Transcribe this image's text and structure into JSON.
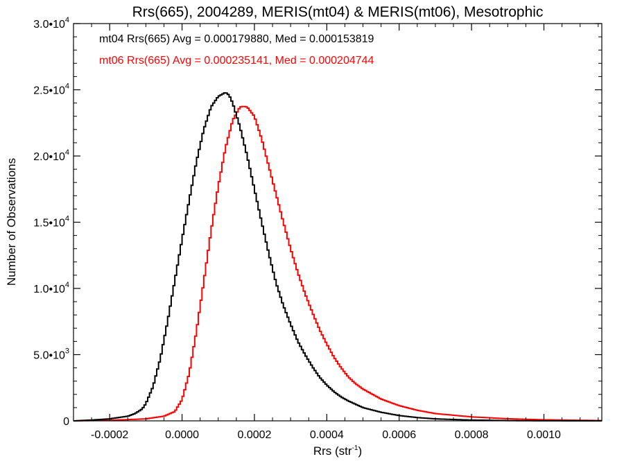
{
  "chart_data": {
    "type": "line",
    "title": "Rrs(665), 2004289, MERIS(mt04) & MERIS(mt06), Mesotrophic",
    "xlabel": "Rrs (str",
    "xlabel_sup": "-1",
    "xlabel_close": ")",
    "ylabel": "Number of Observations",
    "xlim": [
      -0.0003,
      0.00116
    ],
    "ylim": [
      0,
      30000
    ],
    "x_ticks": [
      {
        "value": -0.0002,
        "label": "-0.0002"
      },
      {
        "value": 0.0,
        "label": "0.0000"
      },
      {
        "value": 0.0002,
        "label": "0.0002"
      },
      {
        "value": 0.0004,
        "label": "0.0004"
      },
      {
        "value": 0.0006,
        "label": "0.0006"
      },
      {
        "value": 0.0008,
        "label": "0.0008"
      },
      {
        "value": 0.001,
        "label": "0.0010"
      }
    ],
    "y_ticks": [
      {
        "value": 0,
        "mant": "0",
        "exp": ""
      },
      {
        "value": 5000,
        "mant": "5.0•10",
        "exp": "3"
      },
      {
        "value": 10000,
        "mant": "1.0•10",
        "exp": "4"
      },
      {
        "value": 15000,
        "mant": "1.5•10",
        "exp": "4"
      },
      {
        "value": 20000,
        "mant": "2.0•10",
        "exp": "4"
      },
      {
        "value": 25000,
        "mant": "2.5•10",
        "exp": "4"
      },
      {
        "value": 30000,
        "mant": "3.0•10",
        "exp": "4"
      }
    ],
    "grid": false,
    "legend_position": "top-left",
    "step": true,
    "series": [
      {
        "name": "mt04 Rrs(665) Avg = 0.000179880, Med = 0.000153819",
        "color": "#000000",
        "x": [
          -0.0003,
          -0.00025,
          -0.0002,
          -0.00015,
          -0.00013,
          -0.00011,
          -0.0001,
          -8e-05,
          -6e-05,
          -4e-05,
          -2e-05,
          0.0,
          2e-05,
          4e-05,
          6e-05,
          8e-05,
          0.0001,
          0.00012,
          0.00013,
          0.00014,
          0.00016,
          0.00018,
          0.0002,
          0.00022,
          0.00024,
          0.00026,
          0.00028,
          0.0003,
          0.00032,
          0.00034,
          0.00036,
          0.00038,
          0.0004,
          0.00042,
          0.00044,
          0.00046,
          0.0005,
          0.00055,
          0.0006,
          0.00065,
          0.0007,
          0.0008,
          0.0009,
          0.001,
          0.00116
        ],
        "y": [
          0,
          60,
          150,
          350,
          550,
          900,
          1300,
          2600,
          4700,
          7500,
          10600,
          13700,
          16700,
          19600,
          22000,
          23700,
          24500,
          24800,
          24600,
          24000,
          22200,
          20000,
          17500,
          15000,
          12600,
          10400,
          8700,
          7300,
          6000,
          5000,
          4100,
          3300,
          2700,
          2200,
          1800,
          1500,
          1000,
          650,
          400,
          250,
          150,
          60,
          20,
          5,
          0
        ]
      },
      {
        "name": "mt06 Rrs(665) Avg = 0.000235141, Med = 0.000204744",
        "color": "#ff0000",
        "x": [
          -0.0003,
          -0.0002,
          -0.0001,
          -5e-05,
          -2e-05,
          0.0,
          2e-05,
          4e-05,
          6e-05,
          8e-05,
          0.0001,
          0.00012,
          0.00014,
          0.00016,
          0.00017,
          0.00018,
          0.0002,
          0.00022,
          0.00024,
          0.00026,
          0.00028,
          0.0003,
          0.00032,
          0.00034,
          0.00036,
          0.00038,
          0.0004,
          0.00042,
          0.00044,
          0.00046,
          0.00048,
          0.0005,
          0.00055,
          0.0006,
          0.00065,
          0.0007,
          0.0008,
          0.0009,
          0.001,
          0.00116
        ],
        "y": [
          0,
          40,
          150,
          350,
          700,
          1600,
          3600,
          6800,
          10500,
          14300,
          17700,
          20600,
          22700,
          23700,
          23750,
          23700,
          23000,
          21300,
          19200,
          17100,
          15000,
          13000,
          11200,
          9600,
          8200,
          6900,
          5800,
          4800,
          4000,
          3300,
          2800,
          2400,
          1650,
          1150,
          800,
          550,
          300,
          160,
          80,
          20
        ]
      }
    ]
  }
}
